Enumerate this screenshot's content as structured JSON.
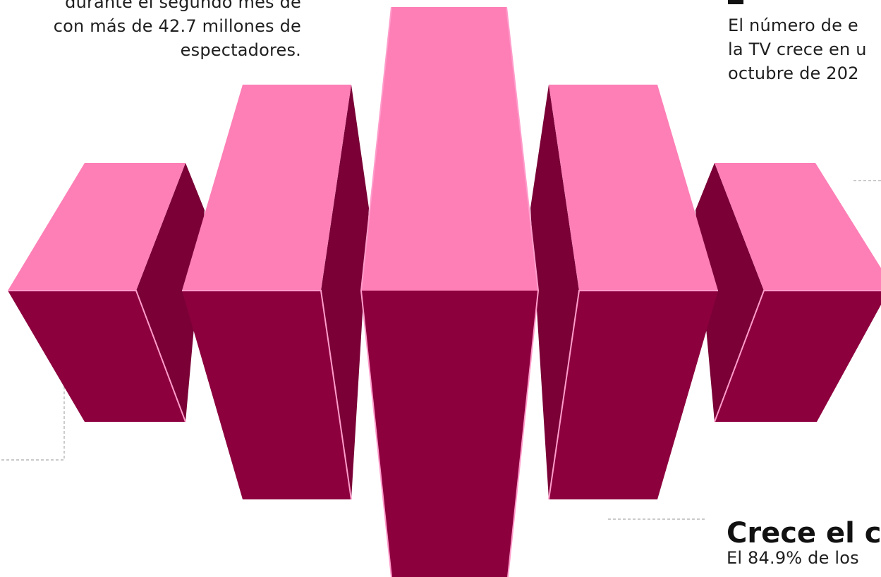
{
  "left_text": {
    "lines": [
      "durante el segundo mes de",
      "con más de 42.7 millones de",
      "espectadores."
    ]
  },
  "right_top_text": {
    "lines": [
      "El número de e",
      "la TV crece en u",
      "octubre de 202"
    ]
  },
  "section_heading": "Crece el c",
  "right_bottom_text": "El 84.9% de los",
  "colors": {
    "top_face": "#fd7fb6",
    "top_edge": "#ff9ccb",
    "front_face": "#8c003e",
    "side_face": "#7a0036",
    "leader_line": "#aaaaaa"
  }
}
